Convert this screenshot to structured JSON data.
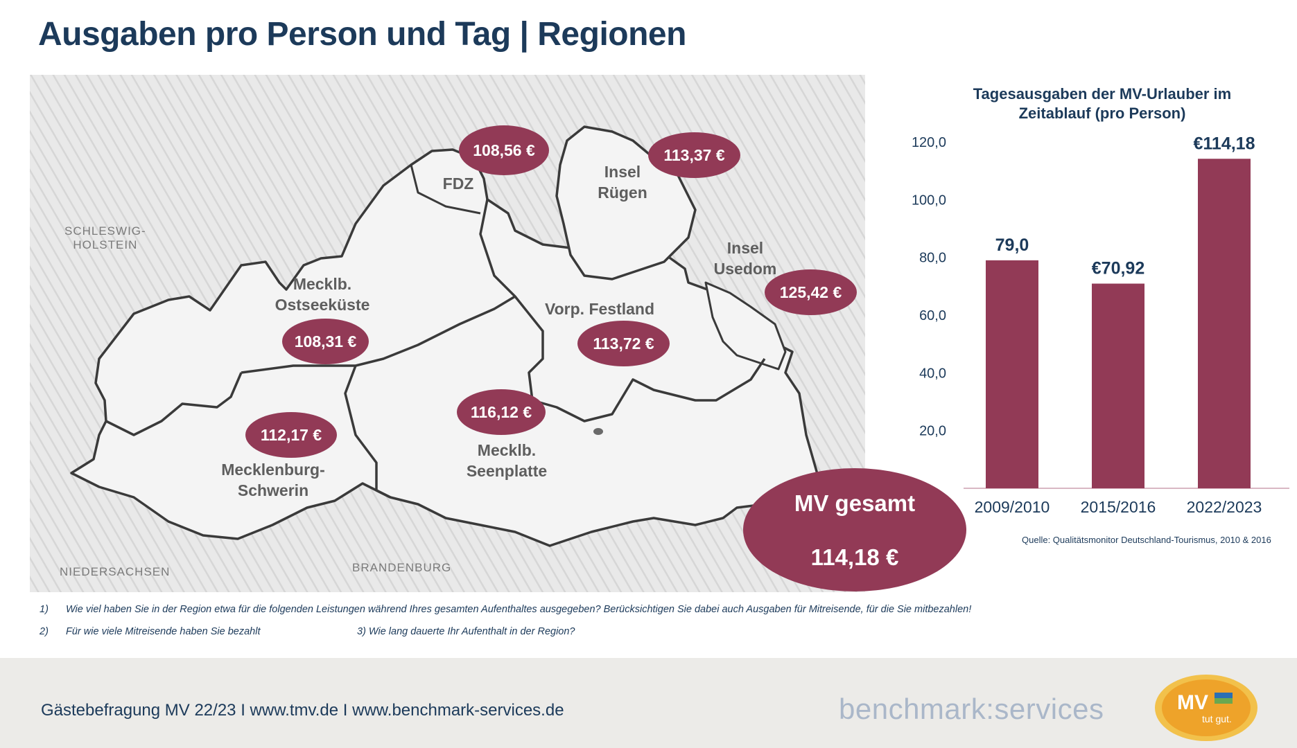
{
  "title": "Ausgaben pro Person und Tag | Regionen",
  "map": {
    "neighbors": [
      {
        "id": "sh",
        "text": "SCHLESWIG-\nHOLSTEIN"
      },
      {
        "id": "ni",
        "text": "NIEDERSACHSEN"
      },
      {
        "id": "bb",
        "text": "BRANDENBURG"
      }
    ],
    "regions": [
      {
        "id": "fdz",
        "label": "FDZ",
        "value": "108,56 €"
      },
      {
        "id": "ruegen",
        "label": "Insel\nRügen",
        "value": "113,37 €"
      },
      {
        "id": "usedom",
        "label": "Insel\nUsedom",
        "value": "125,42 €"
      },
      {
        "id": "ostseekueste",
        "label": "Mecklb.\nOstseeküste",
        "value": "108,31 €"
      },
      {
        "id": "vorp",
        "label": "Vorp. Festland",
        "value": "113,72 €"
      },
      {
        "id": "seenplatte",
        "label": "Mecklb.\nSeenplatte",
        "value": "116,12 €"
      },
      {
        "id": "schwerin",
        "label": "Mecklenburg-\nSchwerin",
        "value": "112,17 €"
      }
    ],
    "total": {
      "label": "MV gesamt",
      "value": "114,18 €"
    }
  },
  "chart_data": {
    "type": "bar",
    "title": "Tagesausgaben der MV-Urlauber im Zeitablauf (pro Person)",
    "categories": [
      "2009/2010",
      "2015/2016",
      "2022/2023"
    ],
    "values": [
      79.0,
      70.92,
      114.18
    ],
    "data_labels": [
      "79,0",
      "€70,92",
      "€114,18"
    ],
    "y_ticks": [
      "20,0",
      "40,0",
      "60,0",
      "80,0",
      "100,0",
      "120,0"
    ],
    "ylim": [
      0,
      120
    ],
    "grid": false,
    "bar_color": "#923a56"
  },
  "source": "Quelle: Qualitätsmonitor Deutschland-Tourismus, 2010 & 2016",
  "footnotes": {
    "n1_num": "1)",
    "n1_text": "Wie viel haben Sie in der Region etwa für die folgenden Leistungen während Ihres gesamten Aufenthaltes ausgegeben? Berücksichtigen Sie dabei auch Ausgaben für Mitreisende, für die Sie mitbezahlen!",
    "n2_num": "2)",
    "n2_text": "Für wie viele Mitreisende haben Sie bezahlt",
    "n3_text": "3) Wie lang dauerte Ihr Aufenthalt in der Region?"
  },
  "footer": {
    "text": "Gästebefragung MV 22/23  I  www.tmv.de  I www.benchmark-services.de",
    "brand": "benchmark:services",
    "logo_main": "MV",
    "logo_sub": "tut gut."
  },
  "colors": {
    "accent": "#923a56",
    "navy": "#1c3a5a",
    "footer_bg": "#ecebe8",
    "logo_orange": "#eea32a"
  }
}
